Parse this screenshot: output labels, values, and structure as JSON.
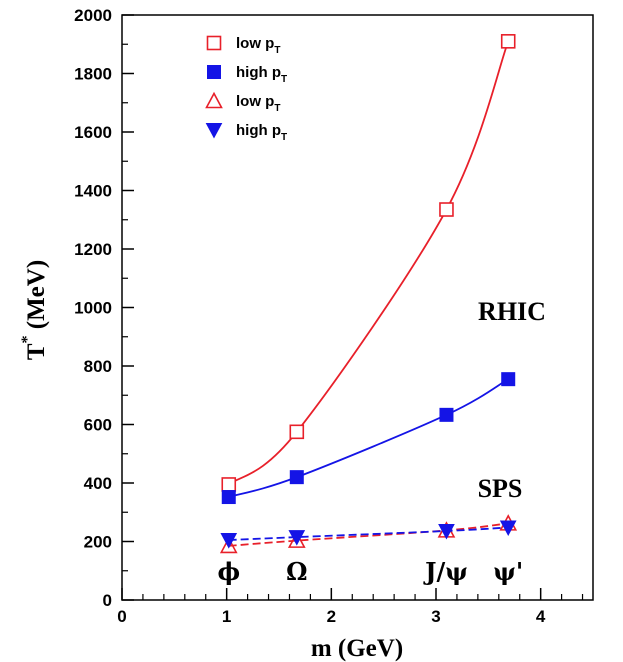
{
  "chart_data": {
    "type": "line",
    "xlabel": "m (GeV)",
    "ylabel_main": "T",
    "ylabel_sup": "*",
    "ylabel_rest": " (MeV)",
    "xlim": [
      0,
      4.5
    ],
    "ylim": [
      0,
      2000
    ],
    "xticks": [
      0,
      1,
      2,
      3,
      4
    ],
    "yticks": [
      0,
      200,
      400,
      600,
      800,
      1000,
      1200,
      1400,
      1600,
      1800,
      2000
    ],
    "particle_labels": [
      {
        "text": "ϕ",
        "x": 1.02
      },
      {
        "text": "Ω",
        "x": 1.67
      },
      {
        "text": "J/ψ",
        "x": 3.1
      },
      {
        "text": "ψ'",
        "x": 3.69
      }
    ],
    "annotations": [
      {
        "text": "RHIC"
      },
      {
        "text": "SPS"
      }
    ],
    "series": [
      {
        "name": "low p",
        "sub": "T",
        "marker": "square-open",
        "color": "#e8202a",
        "dash": false,
        "x": [
          1.02,
          1.67,
          3.1,
          3.69
        ],
        "y": [
          395,
          575,
          1335,
          1910
        ]
      },
      {
        "name": "high p",
        "sub": "T",
        "marker": "square-filled",
        "color": "#1414e6",
        "dash": false,
        "x": [
          1.02,
          1.67,
          3.1,
          3.69
        ],
        "y": [
          352,
          420,
          633,
          755
        ]
      },
      {
        "name": "low p",
        "sub": "T",
        "marker": "triangle-up-open",
        "color": "#e8202a",
        "dash": true,
        "x": [
          1.02,
          1.67,
          3.1,
          3.69
        ],
        "y": [
          185,
          203,
          238,
          262
        ]
      },
      {
        "name": "high p",
        "sub": "T",
        "marker": "triangle-down-filled",
        "color": "#1414e6",
        "dash": true,
        "x": [
          1.02,
          1.67,
          3.1,
          3.69
        ],
        "y": [
          205,
          215,
          236,
          248
        ]
      }
    ]
  }
}
